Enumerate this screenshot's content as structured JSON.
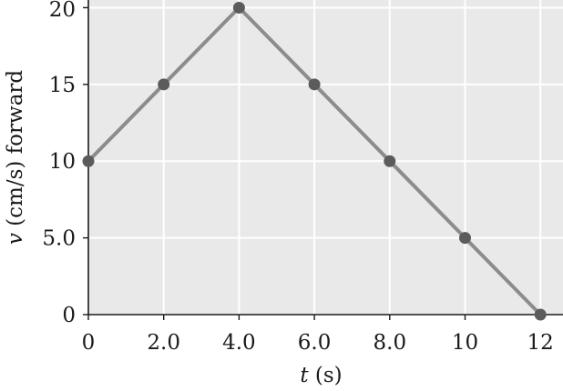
{
  "chart_data": {
    "type": "line",
    "x": [
      0,
      2,
      4,
      6,
      8,
      10,
      12
    ],
    "y": [
      10,
      15,
      20,
      15,
      10,
      5,
      0
    ],
    "xlabel": {
      "symbol": "t",
      "unit": " (s)"
    },
    "ylabel": {
      "symbol": "v",
      "unit": " (cm/s) forward"
    },
    "xlim": [
      0,
      12.6
    ],
    "ylim": [
      0,
      20.5
    ],
    "xticks": [
      0,
      2,
      4,
      6,
      8,
      10,
      12
    ],
    "xtick_labels": [
      "0",
      "2.0",
      "4.0",
      "6.0",
      "8.0",
      "10",
      "12"
    ],
    "yticks": [
      0,
      5,
      10,
      15,
      20
    ],
    "ytick_labels": [
      "0",
      "5.0",
      "10",
      "15",
      "20"
    ],
    "grid": true,
    "colors": {
      "plot_background": "#e9e9e9",
      "grid": "#ffffff",
      "line": "#8c8c8c",
      "marker": "#5b5b5b",
      "axis": "#1a1a1a"
    }
  }
}
